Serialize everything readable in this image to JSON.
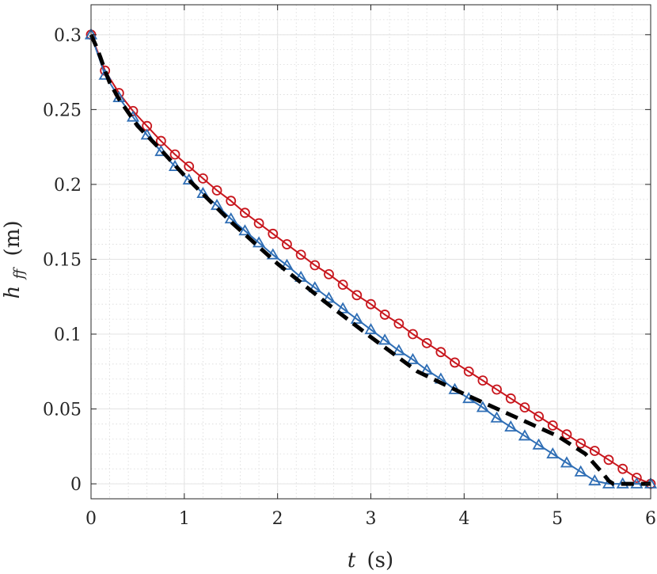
{
  "chart_data": {
    "type": "line",
    "xlabel_var": "t",
    "xlabel_unit": "(s)",
    "ylabel_var": "h",
    "ylabel_sub": "ff",
    "ylabel_unit": "(m)",
    "xlim": [
      0,
      6
    ],
    "ylim": [
      -0.01,
      0.32
    ],
    "x_ticks": [
      0,
      1,
      2,
      3,
      4,
      5,
      6
    ],
    "x_tick_labels": [
      "0",
      "1",
      "2",
      "3",
      "4",
      "5",
      "6"
    ],
    "y_ticks": [
      0,
      0.05,
      0.1,
      0.15,
      0.2,
      0.25,
      0.3
    ],
    "y_tick_labels": [
      "0",
      "0.05",
      "0.1",
      "0.15",
      "0.2",
      "0.25",
      "0.3"
    ],
    "grid": true,
    "minor_grid": true,
    "legend": "none",
    "series": [
      {
        "style": "dashed",
        "color": "#000000",
        "x": [
          0,
          0.05,
          0.1,
          0.15,
          0.2,
          0.3,
          0.4,
          0.5,
          0.75,
          1,
          1.5,
          2,
          2.5,
          3,
          3.5,
          4,
          4.5,
          5,
          5.3,
          5.5,
          5.55,
          5.6,
          6
        ],
        "values": [
          0.3,
          0.293,
          0.285,
          0.276,
          0.268,
          0.257,
          0.248,
          0.239,
          0.223,
          0.206,
          0.175,
          0.147,
          0.122,
          0.098,
          0.075,
          0.06,
          0.046,
          0.032,
          0.02,
          0.006,
          0.002,
          0,
          0
        ]
      },
      {
        "marker": "circle",
        "color": "#c8161d",
        "x": [
          0,
          0.15,
          0.3,
          0.45,
          0.6,
          0.75,
          0.9,
          1.05,
          1.2,
          1.35,
          1.5,
          1.65,
          1.8,
          1.95,
          2.1,
          2.25,
          2.4,
          2.55,
          2.7,
          2.85,
          3.0,
          3.15,
          3.3,
          3.45,
          3.6,
          3.75,
          3.9,
          4.05,
          4.2,
          4.35,
          4.5,
          4.65,
          4.8,
          4.95,
          5.1,
          5.25,
          5.4,
          5.55,
          5.7,
          5.85,
          6.0
        ],
        "values": [
          0.3,
          0.276,
          0.261,
          0.249,
          0.239,
          0.229,
          0.22,
          0.212,
          0.204,
          0.196,
          0.189,
          0.181,
          0.174,
          0.167,
          0.16,
          0.153,
          0.146,
          0.14,
          0.133,
          0.126,
          0.12,
          0.113,
          0.107,
          0.1,
          0.094,
          0.088,
          0.081,
          0.075,
          0.069,
          0.063,
          0.057,
          0.051,
          0.045,
          0.039,
          0.033,
          0.027,
          0.022,
          0.016,
          0.01,
          0.004,
          0.0
        ]
      },
      {
        "marker": "triangle",
        "color": "#2f6eb5",
        "x": [
          0,
          0.15,
          0.3,
          0.45,
          0.6,
          0.75,
          0.9,
          1.05,
          1.2,
          1.35,
          1.5,
          1.65,
          1.8,
          1.95,
          2.1,
          2.25,
          2.4,
          2.55,
          2.7,
          2.85,
          3.0,
          3.15,
          3.3,
          3.45,
          3.6,
          3.75,
          3.9,
          4.05,
          4.2,
          4.35,
          4.5,
          4.65,
          4.8,
          4.95,
          5.1,
          5.25,
          5.4,
          5.55,
          5.7,
          5.85,
          6.0
        ],
        "values": [
          0.3,
          0.273,
          0.258,
          0.245,
          0.233,
          0.222,
          0.212,
          0.203,
          0.194,
          0.186,
          0.177,
          0.169,
          0.161,
          0.153,
          0.146,
          0.138,
          0.131,
          0.124,
          0.117,
          0.11,
          0.103,
          0.096,
          0.089,
          0.083,
          0.076,
          0.07,
          0.063,
          0.057,
          0.051,
          0.044,
          0.038,
          0.032,
          0.026,
          0.02,
          0.014,
          0.008,
          0.002,
          0.0,
          0.0,
          0.0,
          0.0
        ]
      }
    ]
  }
}
